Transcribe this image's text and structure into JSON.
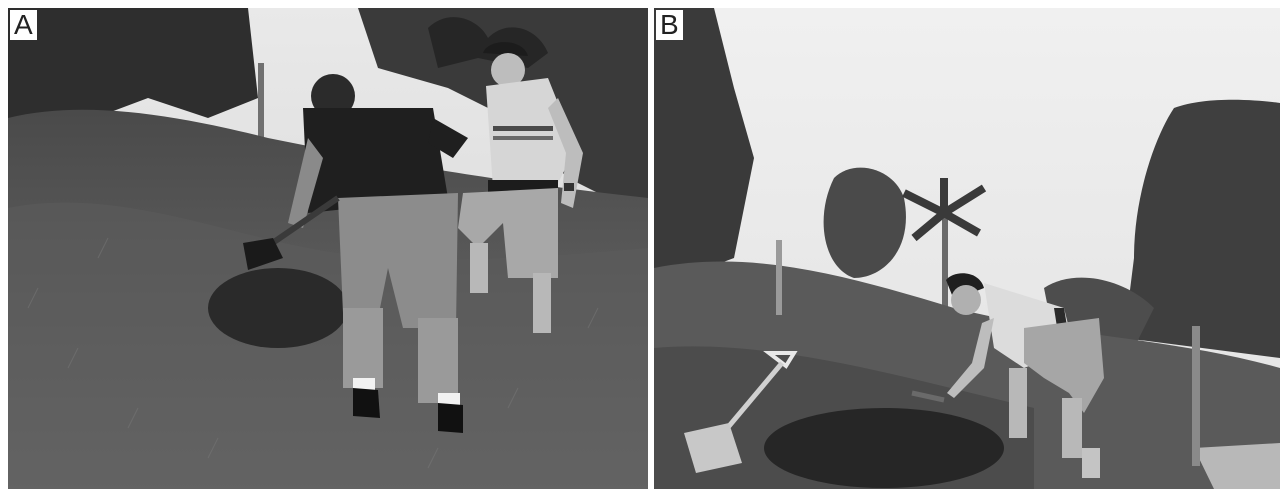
{
  "figure": {
    "panels": [
      {
        "id": "A",
        "label": "A"
      },
      {
        "id": "B",
        "label": "B"
      }
    ]
  }
}
